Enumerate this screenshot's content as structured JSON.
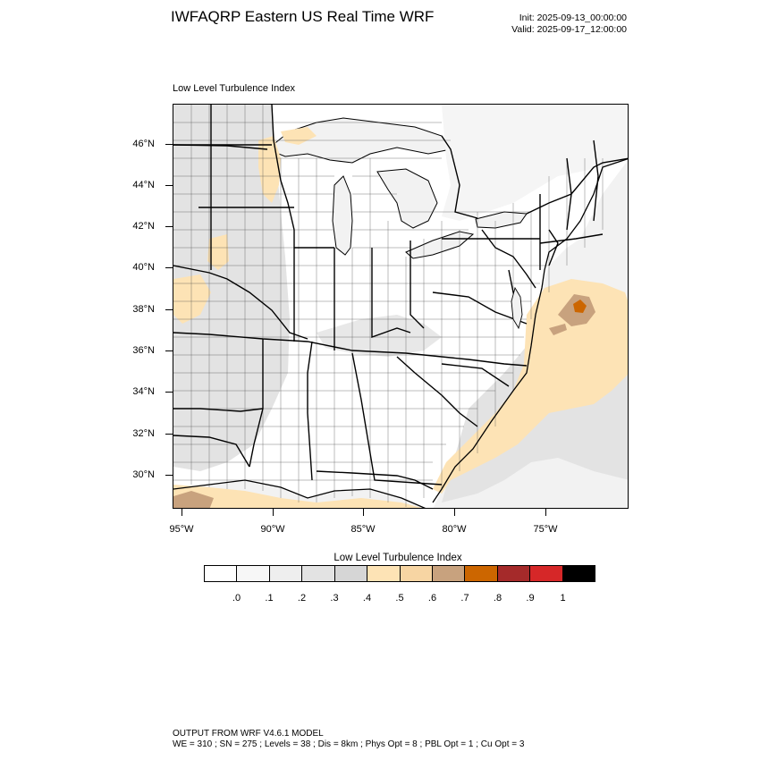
{
  "header": {
    "title": "IWFAQRP Eastern US Real Time WRF",
    "init": "Init: 2025-09-13_00:00:00",
    "valid": "Valid: 2025-09-17_12:00:00"
  },
  "panel": {
    "title": "Low Level Turbulence Index"
  },
  "map": {
    "lat_labels": [
      "46°N",
      "44°N",
      "42°N",
      "40°N",
      "38°N",
      "36°N",
      "34°N",
      "32°N",
      "30°N"
    ],
    "lon_labels": [
      "95°W",
      "90°W",
      "85°W",
      "80°W",
      "75°W"
    ],
    "colors": {
      "land_bg": "#ffffff",
      "water": "#f2f2f2",
      "light_gray": "#e3e3e3",
      "mid_gray": "#d8d8d8",
      "tan_light": "#fde3b5",
      "tan": "#f7d5a3",
      "tan_dark": "#c8a27e",
      "orange": "#cc6600",
      "borders": "#000000"
    }
  },
  "colorbar": {
    "title": "Low Level Turbulence Index",
    "colors": [
      "#ffffff",
      "#f7f7f7",
      "#eeeeee",
      "#e3e3e3",
      "#d6d6d6",
      "#fde3b5",
      "#f7d5a3",
      "#c8a27e",
      "#cc6600",
      "#a52a2a",
      "#d62728",
      "#000000"
    ],
    "labels": [
      ".0",
      ".1",
      ".2",
      ".3",
      ".4",
      ".5",
      ".6",
      ".7",
      ".8",
      ".9",
      "1"
    ]
  },
  "footer": {
    "line1": "OUTPUT FROM WRF V4.6.1 MODEL",
    "line2": "WE = 310 ; SN = 275 ; Levels = 38 ; Dis = 8km ; Phys Opt = 8 ; PBL Opt = 1 ; Cu Opt = 3"
  }
}
